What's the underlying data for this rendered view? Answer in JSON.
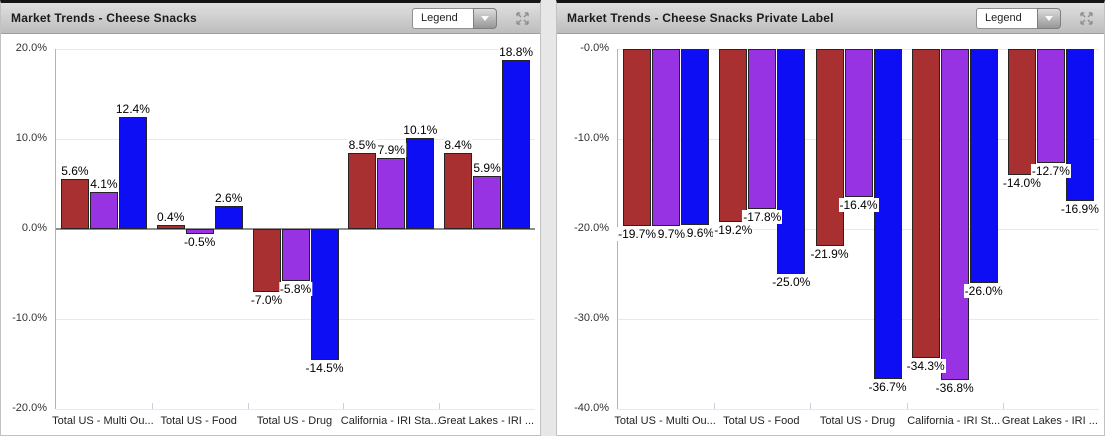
{
  "panels": [
    {
      "title": "Market Trends - Cheese Snacks",
      "legend_label": "Legend"
    },
    {
      "title": "Market Trends - Cheese Snacks Private Label",
      "legend_label": "Legend"
    }
  ],
  "colors": {
    "series_red": "#A93030",
    "series_purple": "#9833E3",
    "series_blue": "#0E0EF5",
    "bar_border": "#242424",
    "zero_line": "#8E8E8E",
    "header_text": "#1B1B1B"
  },
  "chart_data": [
    {
      "type": "bar",
      "title": "Market Trends - Cheese Snacks",
      "categories": [
        "Total US - Multi Ou...",
        "Total US - Food",
        "Total US - Drug",
        "California - IRI Sta...",
        "Great Lakes - IRI ..."
      ],
      "series": [
        {
          "name": "series-red",
          "color": "#A93030",
          "values": [
            5.6,
            0.4,
            -7.0,
            8.5,
            8.4
          ]
        },
        {
          "name": "series-purple",
          "color": "#9833E3",
          "values": [
            4.1,
            -0.5,
            -5.8,
            7.9,
            5.9
          ]
        },
        {
          "name": "series-blue",
          "color": "#0E0EF5",
          "values": [
            12.4,
            2.6,
            -14.5,
            10.1,
            18.8
          ]
        }
      ],
      "ylim": [
        -20,
        20
      ],
      "yticks": [
        {
          "label": "20.0%",
          "value": 20
        },
        {
          "label": "10.0%",
          "value": 10
        },
        {
          "label": "0.0%",
          "value": 0
        },
        {
          "label": "-10.0%",
          "value": -10
        },
        {
          "label": "-20.0%",
          "value": -20
        }
      ],
      "grid": true,
      "legend_position": "collapsed-dropdown",
      "value_label_format": "0.0%"
    },
    {
      "type": "bar",
      "title": "Market Trends - Cheese Snacks Private Label",
      "categories": [
        "Total US - Multi Ou...",
        "Total US - Food",
        "Total US - Drug",
        "California - IRI St...",
        "Great Lakes - IRI ..."
      ],
      "series": [
        {
          "name": "series-red",
          "color": "#A93030",
          "values": [
            -19.7,
            -19.2,
            -21.9,
            -34.3,
            -14.0
          ]
        },
        {
          "name": "series-purple",
          "color": "#9833E3",
          "values": [
            -19.7,
            -17.8,
            -16.4,
            -36.8,
            -12.7
          ]
        },
        {
          "name": "series-blue",
          "color": "#0E0EF5",
          "values": [
            -19.6,
            -25.0,
            -36.7,
            -26.0,
            -16.9
          ]
        }
      ],
      "ylim": [
        -40,
        0
      ],
      "yticks": [
        {
          "label": "-0.0%",
          "value": 0
        },
        {
          "label": "-10.0%",
          "value": -10
        },
        {
          "label": "-20.0%",
          "value": -20
        },
        {
          "label": "-30.0%",
          "value": -30
        },
        {
          "label": "-40.0%",
          "value": -40
        }
      ],
      "grid": true,
      "legend_position": "collapsed-dropdown",
      "value_label_format": "0.0%"
    }
  ]
}
